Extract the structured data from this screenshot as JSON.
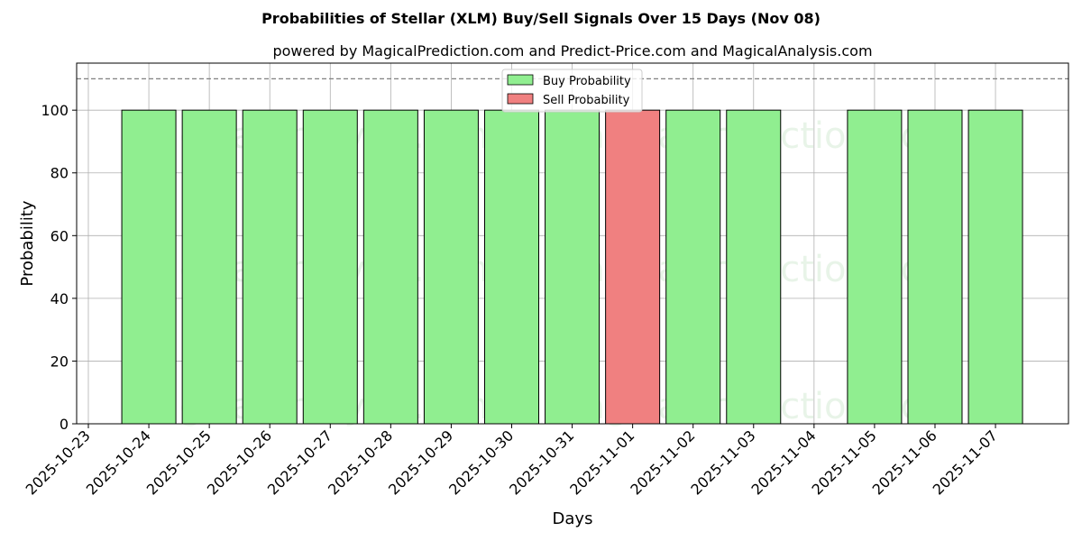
{
  "chart_data": {
    "type": "bar",
    "title": "Probabilities of Stellar (XLM) Buy/Sell Signals Over 15 Days (Nov 08)",
    "subtitle": "powered by MagicalPrediction.com and Predict-Price.com and MagicalAnalysis.com",
    "xlabel": "Days",
    "ylabel": "Probability",
    "ylim": [
      0,
      115
    ],
    "yticks": [
      0,
      20,
      40,
      60,
      80,
      100
    ],
    "reference_line": 110,
    "grid": true,
    "legend_position": "top-center",
    "categories": [
      "2025-10-23",
      "2025-10-24",
      "2025-10-25",
      "2025-10-26",
      "2025-10-27",
      "2025-10-28",
      "2025-10-29",
      "2025-10-30",
      "2025-10-31",
      "2025-11-01",
      "2025-11-02",
      "2025-11-03",
      "2025-11-04",
      "2025-11-05",
      "2025-11-06",
      "2025-11-07"
    ],
    "series": [
      {
        "name": "Buy Probability",
        "color": "#90ee90",
        "values": [
          null,
          100,
          100,
          100,
          100,
          100,
          100,
          100,
          100,
          null,
          100,
          100,
          null,
          100,
          100,
          100
        ]
      },
      {
        "name": "Sell Probability",
        "color": "#f08080",
        "values": [
          null,
          null,
          null,
          null,
          null,
          null,
          null,
          null,
          null,
          100,
          null,
          null,
          null,
          null,
          null,
          null
        ]
      }
    ],
    "watermarks": [
      "MagicalAnalysis.com",
      "MagicalPrediction.com"
    ]
  }
}
